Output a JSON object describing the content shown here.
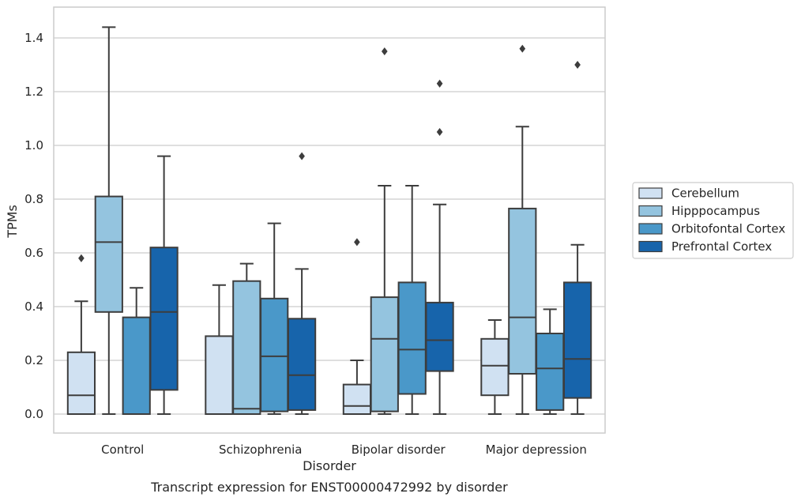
{
  "caption": "Transcript expression for ENST00000472992 by disorder",
  "chart_data": {
    "type": "box",
    "xlabel": "Disorder",
    "ylabel": "TPMs",
    "ylim": [
      -0.07,
      1.52
    ],
    "yticks": [
      0.0,
      0.2,
      0.4,
      0.6,
      0.8,
      1.0,
      1.2,
      1.4
    ],
    "ytick_labels": [
      "0.0",
      "0.2",
      "0.4",
      "0.6",
      "0.8",
      "1.0",
      "1.2",
      "1.4"
    ],
    "grid": "horizontal",
    "legend_position": "right",
    "categories": [
      "Control",
      "Schizophrenia",
      "Bipolar disorder",
      "Major depression"
    ],
    "series": [
      {
        "name": "Cerebellum",
        "color": "#d0e1f2",
        "boxes": [
          {
            "whislo": 0.0,
            "q1": 0.0,
            "med": 0.07,
            "q3": 0.23,
            "whishi": 0.42,
            "fliers": [
              0.58
            ]
          },
          {
            "whislo": 0.0,
            "q1": 0.0,
            "med": 0.0,
            "q3": 0.29,
            "whishi": 0.48,
            "fliers": []
          },
          {
            "whislo": 0.0,
            "q1": 0.0,
            "med": 0.03,
            "q3": 0.11,
            "whishi": 0.2,
            "fliers": [
              0.64
            ]
          },
          {
            "whislo": 0.0,
            "q1": 0.07,
            "med": 0.18,
            "q3": 0.28,
            "whishi": 0.35,
            "fliers": []
          }
        ]
      },
      {
        "name": "Hipppocampus",
        "color": "#94c4df",
        "boxes": [
          {
            "whislo": 0.0,
            "q1": 0.38,
            "med": 0.64,
            "q3": 0.81,
            "whishi": 1.44,
            "fliers": []
          },
          {
            "whislo": 0.0,
            "q1": 0.0,
            "med": 0.02,
            "q3": 0.495,
            "whishi": 0.56,
            "fliers": []
          },
          {
            "whislo": 0.0,
            "q1": 0.01,
            "med": 0.28,
            "q3": 0.435,
            "whishi": 0.85,
            "fliers": [
              1.35
            ]
          },
          {
            "whislo": 0.0,
            "q1": 0.15,
            "med": 0.36,
            "q3": 0.765,
            "whishi": 1.07,
            "fliers": [
              1.36
            ]
          }
        ]
      },
      {
        "name": "Orbitofontal Cortex",
        "color": "#4a98c9",
        "boxes": [
          {
            "whislo": 0.0,
            "q1": 0.0,
            "med": 0.0,
            "q3": 0.36,
            "whishi": 0.47,
            "fliers": []
          },
          {
            "whislo": 0.0,
            "q1": 0.01,
            "med": 0.215,
            "q3": 0.43,
            "whishi": 0.71,
            "fliers": []
          },
          {
            "whislo": 0.0,
            "q1": 0.075,
            "med": 0.24,
            "q3": 0.49,
            "whishi": 0.85,
            "fliers": []
          },
          {
            "whislo": 0.0,
            "q1": 0.015,
            "med": 0.17,
            "q3": 0.3,
            "whishi": 0.39,
            "fliers": []
          }
        ]
      },
      {
        "name": "Prefrontal Cortex",
        "color": "#1764ab",
        "boxes": [
          {
            "whislo": 0.0,
            "q1": 0.09,
            "med": 0.38,
            "q3": 0.62,
            "whishi": 0.96,
            "fliers": []
          },
          {
            "whislo": 0.0,
            "q1": 0.015,
            "med": 0.145,
            "q3": 0.355,
            "whishi": 0.54,
            "fliers": [
              0.96
            ]
          },
          {
            "whislo": 0.0,
            "q1": 0.16,
            "med": 0.275,
            "q3": 0.415,
            "whishi": 0.78,
            "fliers": [
              1.05,
              1.23
            ]
          },
          {
            "whislo": 0.0,
            "q1": 0.06,
            "med": 0.205,
            "q3": 0.49,
            "whishi": 0.63,
            "fliers": [
              1.3
            ]
          }
        ]
      }
    ]
  }
}
